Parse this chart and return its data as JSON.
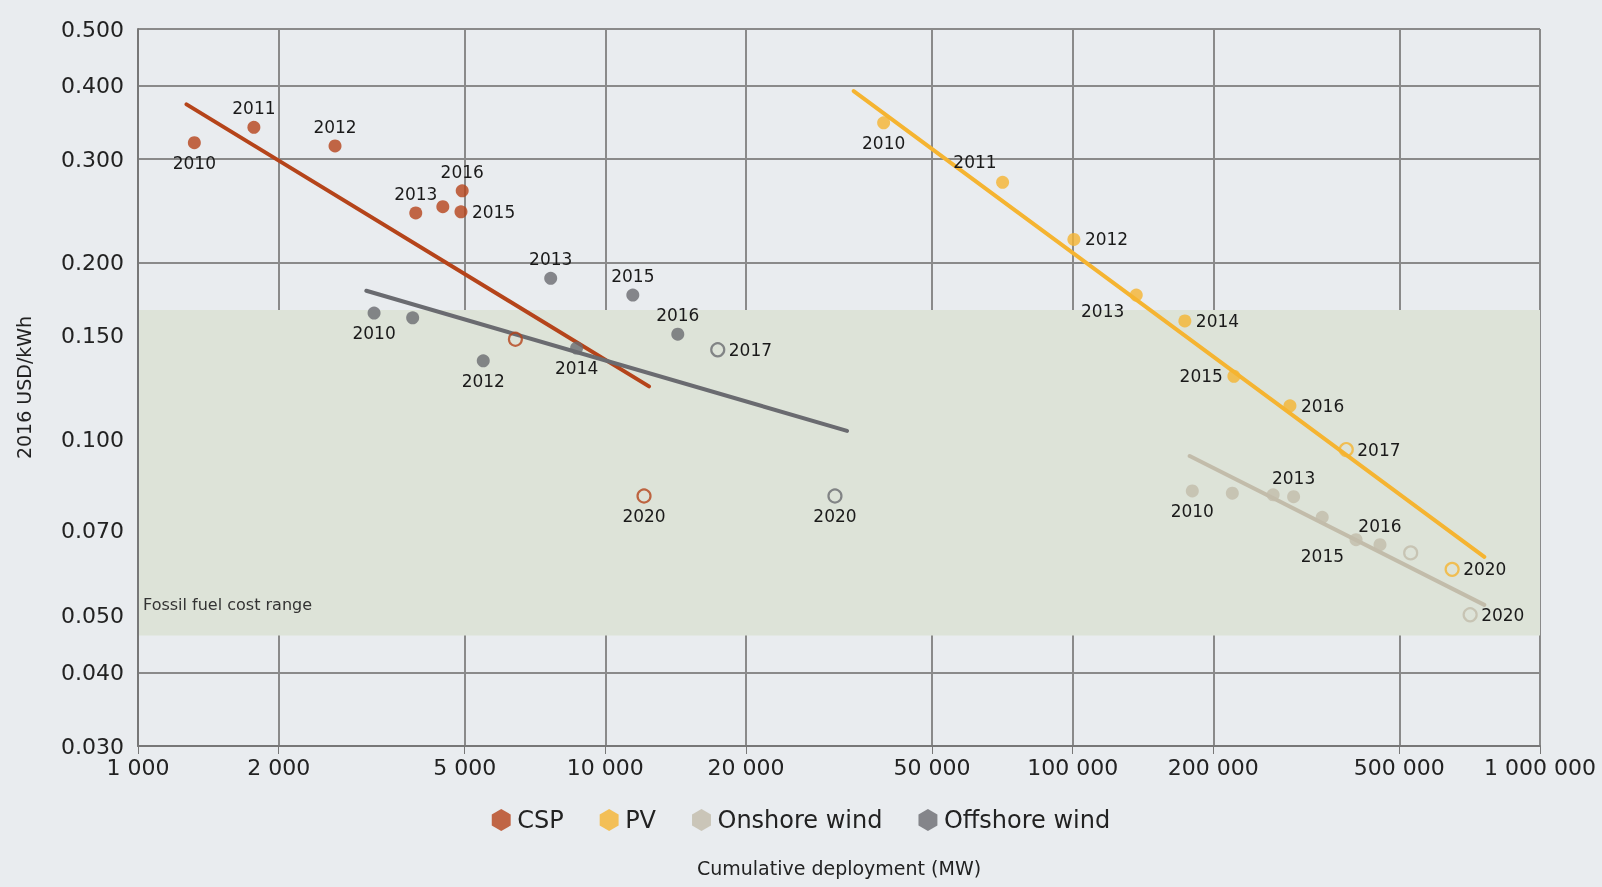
{
  "chart_data": {
    "type": "scatter",
    "xlabel": "Cumulative deployment (MW)",
    "ylabel": "2016 USD/kWh",
    "log": "xy",
    "grid": true,
    "legend": "bottom",
    "marker": "circle",
    "xlim": [
      1000,
      1000000
    ],
    "xticks": [
      {
        "value": 1000,
        "label": "1 000"
      },
      {
        "value": 2000,
        "label": "2 000"
      },
      {
        "value": 5000,
        "label": "5 000"
      },
      {
        "value": 10000,
        "label": "10 000"
      },
      {
        "value": 20000,
        "label": "20 000"
      },
      {
        "value": 50000,
        "label": "50 000"
      },
      {
        "value": 100000,
        "label": "100 000"
      },
      {
        "value": 200000,
        "label": "200 000"
      },
      {
        "value": 500000,
        "label": "500 000"
      },
      {
        "value": 1000000,
        "label": "1 000 000"
      }
    ],
    "ylim": [
      0.03,
      0.5
    ],
    "yticks": [
      {
        "value": 0.03,
        "label": "0.030"
      },
      {
        "value": 0.04,
        "label": "0.040"
      },
      {
        "value": 0.05,
        "label": "0.050"
      },
      {
        "value": 0.07,
        "label": "0.070"
      },
      {
        "value": 0.1,
        "label": "0.100"
      },
      {
        "value": 0.15,
        "label": "0.150"
      },
      {
        "value": 0.2,
        "label": "0.200"
      },
      {
        "value": 0.3,
        "label": "0.300"
      },
      {
        "value": 0.4,
        "label": "0.400"
      },
      {
        "value": 0.5,
        "label": "0.500"
      }
    ],
    "bands": [
      {
        "axis": "y",
        "from": 0.0463,
        "to": 0.166,
        "label": "Fossil fuel cost range",
        "color": "#dde3d8"
      }
    ],
    "series": [
      {
        "name": "CSP",
        "color": "#b5441a",
        "x": [
          1320,
          1770,
          2640,
          3930,
          4490,
          4910,
          4940
        ],
        "values": [
          0.32,
          0.34,
          0.316,
          0.243,
          0.249,
          0.244,
          0.265
        ]
      },
      {
        "color": "#b5441a",
        "x": [
          6420,
          12100
        ],
        "values": [
          0.148,
          0.08
        ]
      },
      {
        "type": "line",
        "marker": "none",
        "color": "#b5441a",
        "x": [
          1270,
          12400
        ],
        "values": [
          0.372,
          0.123
        ]
      },
      {
        "name": "PV",
        "color": "#f5b431",
        "x": [
          39400,
          70800,
          100600,
          136800,
          173800,
          221300,
          291700
        ],
        "values": [
          0.346,
          0.274,
          0.219,
          0.176,
          0.159,
          0.128,
          0.114
        ]
      },
      {
        "color": "#f5b431",
        "x": [
          385000,
          648600
        ],
        "values": [
          0.096,
          0.06
        ]
      },
      {
        "type": "line",
        "marker": "none",
        "color": "#f5b431",
        "x": [
          34000,
          760000
        ],
        "values": [
          0.392,
          0.063
        ]
      },
      {
        "name": "Onshore wind",
        "color": "#c2bcaa",
        "x": [
          180300,
          219600,
          268500,
          297000,
          342000,
          404000,
          454600
        ],
        "values": [
          0.0816,
          0.0809,
          0.0804,
          0.0798,
          0.0736,
          0.0674,
          0.0661
        ]
      },
      {
        "color": "#c2bcaa",
        "x": [
          528800,
          708800
        ],
        "values": [
          0.064,
          0.0502
        ]
      },
      {
        "type": "line",
        "marker": "none",
        "color": "#c2bcaa",
        "x": [
          178000,
          760000
        ],
        "values": [
          0.0936,
          0.0522
        ]
      },
      {
        "name": "Offshore wind",
        "color": "#6a6b70",
        "x": [
          3200,
          3870,
          5480,
          7640,
          8680,
          11450,
          14290
        ],
        "values": [
          0.164,
          0.161,
          0.136,
          0.188,
          0.143,
          0.176,
          0.151
        ]
      },
      {
        "color": "#6a6b70",
        "x": [
          17400,
          31000
        ],
        "values": [
          0.142,
          0.08
        ]
      },
      {
        "type": "line",
        "marker": "none",
        "color": "#6a6b70",
        "x": [
          3080,
          32900
        ],
        "values": [
          0.179,
          0.1033
        ]
      }
    ],
    "annotations": [
      {
        "text": "2010",
        "x": 1320,
        "y": 0.32
      },
      {
        "text": "2011",
        "x": 1770,
        "y": 0.34
      },
      {
        "text": "2012",
        "x": 2640,
        "y": 0.316
      },
      {
        "text": "2013",
        "x": 3930,
        "y": 0.243
      },
      {
        "text": "2015",
        "x": 4910,
        "y": 0.244
      },
      {
        "text": "2016",
        "x": 4940,
        "y": 0.265
      },
      {
        "text": "2020",
        "x": 12100,
        "y": 0.08
      },
      {
        "text": "2010",
        "x": 39400,
        "y": 0.346
      },
      {
        "text": "2011",
        "x": 70800,
        "y": 0.274
      },
      {
        "text": "2012",
        "x": 100600,
        "y": 0.219
      },
      {
        "text": "2013",
        "x": 136800,
        "y": 0.176
      },
      {
        "text": "2014",
        "x": 173800,
        "y": 0.159
      },
      {
        "text": "2015",
        "x": 221300,
        "y": 0.128
      },
      {
        "text": "2016",
        "x": 291700,
        "y": 0.114
      },
      {
        "text": "2017",
        "x": 385000,
        "y": 0.096
      },
      {
        "text": "2020",
        "x": 648600,
        "y": 0.06
      },
      {
        "text": "2010",
        "x": 180300,
        "y": 0.0816
      },
      {
        "text": "2013",
        "x": 297000,
        "y": 0.0798
      },
      {
        "text": "2015",
        "x": 404000,
        "y": 0.0674
      },
      {
        "text": "2016",
        "x": 454600,
        "y": 0.0661
      },
      {
        "text": "2020",
        "x": 708800,
        "y": 0.0502
      },
      {
        "text": "2010",
        "x": 3200,
        "y": 0.164
      },
      {
        "text": "2012",
        "x": 5480,
        "y": 0.136
      },
      {
        "text": "2013",
        "x": 7640,
        "y": 0.188
      },
      {
        "text": "2014",
        "x": 8680,
        "y": 0.143
      },
      {
        "text": "2015",
        "x": 11450,
        "y": 0.176
      },
      {
        "text": "2016",
        "x": 14290,
        "y": 0.151
      },
      {
        "text": "2017",
        "x": 17400,
        "y": 0.142
      },
      {
        "text": "2020",
        "x": 31000,
        "y": 0.08
      }
    ]
  }
}
